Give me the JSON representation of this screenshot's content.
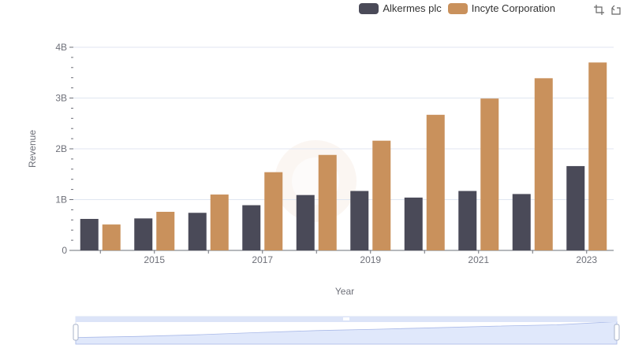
{
  "chart_data": {
    "type": "bar",
    "categories": [
      "2014",
      "2015",
      "2016",
      "2017",
      "2018",
      "2019",
      "2020",
      "2021",
      "2022",
      "2023"
    ],
    "x_tick_labels": [
      "2015",
      "2017",
      "2019",
      "2021",
      "2023"
    ],
    "series": [
      {
        "name": "Alkermes plc",
        "color": "#4a4a58",
        "values": [
          0.62,
          0.63,
          0.74,
          0.89,
          1.09,
          1.17,
          1.04,
          1.17,
          1.11,
          1.66
        ]
      },
      {
        "name": "Incyte Corporation",
        "color": "#c9915c",
        "values": [
          0.51,
          0.76,
          1.1,
          1.54,
          1.88,
          2.16,
          2.67,
          2.99,
          3.39,
          3.7
        ]
      }
    ],
    "ylim": [
      0,
      4
    ],
    "y_ticks": [
      0,
      1,
      2,
      3,
      4
    ],
    "y_tick_labels": [
      "0",
      "1B",
      "2B",
      "3B",
      "4B"
    ],
    "xlabel": "Year",
    "ylabel": "Revenue",
    "grid": true,
    "legend_position": "top-right"
  },
  "toolbox": {
    "zoom_icon": "data-zoom-icon",
    "restore_icon": "restore-icon"
  },
  "slider": {
    "fill": "#e0e8fb",
    "border": "#c9d4f0",
    "line": "#a9b9e8"
  }
}
